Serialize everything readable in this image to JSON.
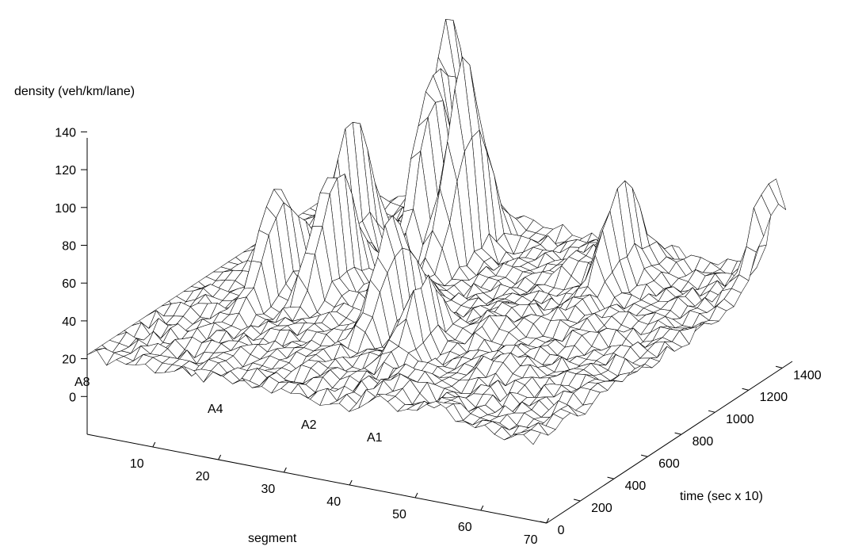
{
  "chart_data": {
    "type": "surface",
    "title": "",
    "zlabel": "density (veh/km/lane)",
    "xlabel": "segment",
    "ylabel": "time (sec x 10)",
    "xlim": [
      0,
      70
    ],
    "ylim": [
      0,
      1500
    ],
    "zlim": [
      -20,
      140
    ],
    "x_ticks": [
      10,
      20,
      30,
      40,
      50,
      60,
      70
    ],
    "y_ticks": [
      0,
      200,
      400,
      600,
      800,
      1000,
      1200,
      1400
    ],
    "z_ticks": [
      0,
      20,
      40,
      60,
      80,
      100,
      120,
      140
    ],
    "grid": false,
    "baseline_density": 22,
    "annotations": [
      {
        "text": "A8",
        "segment": 0
      },
      {
        "text": "A4",
        "segment": 12
      },
      {
        "text": "A2",
        "segment": 22
      },
      {
        "text": "A1",
        "segment": 30
      }
    ],
    "peaks": [
      {
        "segment": 21,
        "time": 1350,
        "density": 140
      },
      {
        "segment": 27,
        "time": 1200,
        "density": 130
      },
      {
        "segment": 23,
        "time": 1150,
        "density": 120
      },
      {
        "segment": 13,
        "time": 1050,
        "density": 98
      },
      {
        "segment": 17,
        "time": 800,
        "density": 95
      },
      {
        "segment": 11,
        "time": 700,
        "density": 85
      },
      {
        "segment": 30,
        "time": 650,
        "density": 80
      },
      {
        "segment": 38,
        "time": 500,
        "density": 60
      },
      {
        "segment": 50,
        "time": 1200,
        "density": 75
      },
      {
        "segment": 67,
        "time": 1450,
        "density": 80
      }
    ]
  }
}
